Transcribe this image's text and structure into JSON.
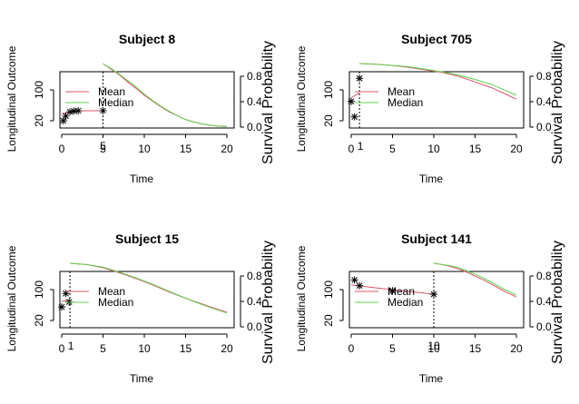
{
  "chart_data": [
    {
      "type": "line",
      "title": "Subject 8",
      "xlabel": "Time",
      "ylabel_left": "Longitudinal Outcome",
      "ylabel_right": "Survival Probability",
      "xlim": [
        0,
        20
      ],
      "x_ticks": [
        "0",
        "5",
        "10",
        "15",
        "20"
      ],
      "y_left_ticks": [
        "20",
        "100"
      ],
      "y_right_ticks": [
        "0.0",
        "0.4",
        "0.8"
      ],
      "cutoff_time": 5,
      "cutoff_label": "5",
      "legend": {
        "position": "left",
        "entries": [
          "Mean",
          "Median"
        ]
      },
      "observed": [
        [
          0.2,
          20
        ],
        [
          0.5,
          32
        ],
        [
          1,
          43
        ],
        [
          1.5,
          45
        ],
        [
          2,
          46
        ],
        [
          5,
          46
        ]
      ],
      "longitudinal_fit": {
        "x": [
          0,
          1,
          2,
          3,
          4,
          5
        ],
        "y": [
          38,
          43,
          45,
          46,
          46,
          46
        ]
      },
      "survival": {
        "x": [
          5,
          6,
          7,
          8,
          9,
          10,
          11,
          12,
          13,
          14,
          15,
          16,
          17,
          18,
          19,
          20
        ],
        "series": [
          {
            "name": "Mean",
            "color": "#DF536B",
            "values": [
              1.0,
              0.91,
              0.82,
              0.71,
              0.61,
              0.5,
              0.41,
              0.32,
              0.24,
              0.18,
              0.12,
              0.08,
              0.05,
              0.03,
              0.015,
              0.01
            ]
          },
          {
            "name": "Median",
            "color": "#61D04F",
            "values": [
              1.0,
              0.92,
              0.83,
              0.73,
              0.63,
              0.52,
              0.42,
              0.33,
              0.25,
              0.18,
              0.12,
              0.08,
              0.05,
              0.03,
              0.015,
              0.008
            ]
          }
        ]
      }
    },
    {
      "type": "line",
      "title": "Subject 705",
      "xlabel": "Time",
      "ylabel_left": "Longitudinal Outcome",
      "ylabel_right": "Survival Probability",
      "xlim": [
        0,
        20
      ],
      "x_ticks": [
        "0",
        "5",
        "10",
        "15",
        "20"
      ],
      "y_left_ticks": [
        "20",
        "100"
      ],
      "y_right_ticks": [
        "0.0",
        "0.4",
        "0.8"
      ],
      "cutoff_time": 1,
      "cutoff_label": "1",
      "legend": {
        "position": "left",
        "entries": [
          "Mean",
          "Median"
        ]
      },
      "observed": [
        [
          0,
          70
        ],
        [
          0.4,
          30
        ],
        [
          1,
          130
        ]
      ],
      "longitudinal_fit": {
        "x": [
          0,
          1
        ],
        "y": [
          80,
          92
        ]
      },
      "survival": {
        "x": [
          1,
          3,
          5,
          7,
          9,
          11,
          13,
          15,
          17,
          19,
          20
        ],
        "series": [
          {
            "name": "Mean",
            "color": "#DF536B",
            "values": [
              1.0,
              0.99,
              0.97,
              0.94,
              0.9,
              0.86,
              0.8,
              0.71,
              0.62,
              0.5,
              0.44
            ]
          },
          {
            "name": "Median",
            "color": "#61D04F",
            "values": [
              1.0,
              0.99,
              0.97,
              0.95,
              0.91,
              0.87,
              0.82,
              0.75,
              0.67,
              0.56,
              0.5
            ]
          }
        ]
      }
    },
    {
      "type": "line",
      "title": "Subject 15",
      "xlabel": "Time",
      "ylabel_left": "Longitudinal Outcome",
      "ylabel_right": "Survival Probability",
      "xlim": [
        0,
        20
      ],
      "x_ticks": [
        "0",
        "5",
        "10",
        "15",
        "20"
      ],
      "y_left_ticks": [
        "20",
        "100"
      ],
      "y_right_ticks": [
        "0.0",
        "0.4",
        "0.8"
      ],
      "cutoff_time": 1,
      "cutoff_label": "1",
      "legend": {
        "position": "left",
        "entries": [
          "Mean",
          "Median"
        ]
      },
      "observed": [
        [
          0,
          55
        ],
        [
          0.5,
          90
        ],
        [
          0.9,
          68
        ]
      ],
      "longitudinal_fit": {
        "x": [
          0,
          1
        ],
        "y": [
          70,
          72
        ]
      },
      "survival": {
        "x": [
          1,
          3,
          5,
          7,
          9,
          11,
          13,
          15,
          17,
          19,
          20
        ],
        "series": [
          {
            "name": "Mean",
            "color": "#DF536B",
            "values": [
              1.0,
              0.98,
              0.93,
              0.85,
              0.76,
              0.66,
              0.55,
              0.45,
              0.36,
              0.27,
              0.23
            ]
          },
          {
            "name": "Median",
            "color": "#61D04F",
            "values": [
              1.0,
              0.98,
              0.94,
              0.86,
              0.77,
              0.67,
              0.56,
              0.45,
              0.35,
              0.26,
              0.22
            ]
          }
        ]
      }
    },
    {
      "type": "line",
      "title": "Subject 141",
      "xlabel": "Time",
      "ylabel_left": "Longitudinal Outcome",
      "ylabel_right": "Survival Probability",
      "xlim": [
        0,
        20
      ],
      "x_ticks": [
        "0",
        "5",
        "10",
        "15",
        "20"
      ],
      "y_left_ticks": [
        "20",
        "100"
      ],
      "y_right_ticks": [
        "0.0",
        "0.4",
        "0.8"
      ],
      "cutoff_time": 10,
      "cutoff_label": "10",
      "legend": {
        "position": "left",
        "entries": [
          "Mean",
          "Median"
        ]
      },
      "observed": [
        [
          0.4,
          125
        ],
        [
          1,
          110
        ],
        [
          5,
          97
        ],
        [
          10,
          88
        ]
      ],
      "longitudinal_fit": {
        "x": [
          0,
          2,
          4,
          6,
          8,
          10
        ],
        "y": [
          112,
          107,
          102,
          97,
          93,
          88
        ]
      },
      "survival": {
        "x": [
          10,
          11,
          12,
          13,
          14,
          15,
          16,
          17,
          18,
          19,
          20
        ],
        "series": [
          {
            "name": "Mean",
            "color": "#DF536B",
            "values": [
              1.0,
              0.98,
              0.95,
              0.91,
              0.86,
              0.8,
              0.74,
              0.67,
              0.6,
              0.53,
              0.47
            ]
          },
          {
            "name": "Median",
            "color": "#61D04F",
            "values": [
              1.0,
              0.98,
              0.96,
              0.93,
              0.88,
              0.83,
              0.77,
              0.7,
              0.63,
              0.56,
              0.5
            ]
          }
        ]
      }
    }
  ]
}
